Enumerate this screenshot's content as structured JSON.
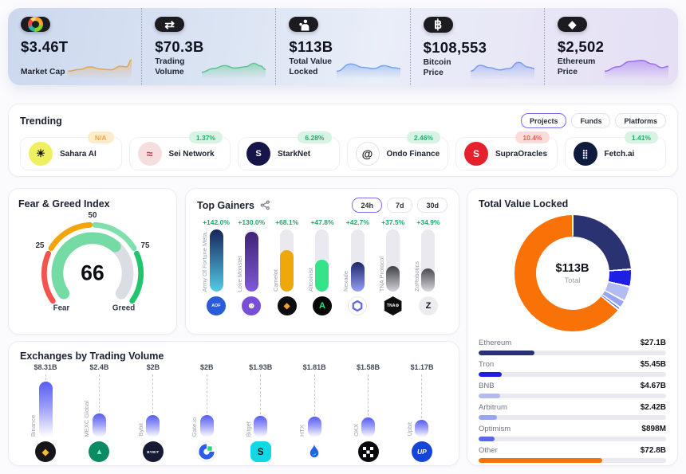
{
  "hero": {
    "cards": [
      {
        "label": "Market Cap",
        "value": "$3.46T",
        "icon": "market-cap-icon",
        "spark_color": "#e3a455",
        "spark": [
          [
            0,
            0.3
          ],
          [
            0.18,
            0.4
          ],
          [
            0.35,
            0.55
          ],
          [
            0.52,
            0.42
          ],
          [
            0.68,
            0.38
          ],
          [
            0.82,
            0.58
          ],
          [
            0.92,
            0.55
          ],
          [
            1,
            0.95
          ]
        ]
      },
      {
        "label": "Trading Volume",
        "value": "$70.3B",
        "icon": "swap-icon",
        "spark_color": "#58c68c",
        "spark": [
          [
            0,
            0.25
          ],
          [
            0.18,
            0.45
          ],
          [
            0.36,
            0.62
          ],
          [
            0.52,
            0.48
          ],
          [
            0.68,
            0.55
          ],
          [
            0.82,
            0.75
          ],
          [
            0.92,
            0.6
          ],
          [
            1,
            0.4
          ]
        ]
      },
      {
        "label": "Total Value Locked",
        "value": "$113B",
        "icon": "tvl-icon",
        "spark_color": "#78a4ef",
        "spark": [
          [
            0,
            0.3
          ],
          [
            0.22,
            0.72
          ],
          [
            0.42,
            0.52
          ],
          [
            0.58,
            0.45
          ],
          [
            0.74,
            0.62
          ],
          [
            0.9,
            0.5
          ],
          [
            1,
            0.45
          ]
        ]
      },
      {
        "label": "Bitcoin Price",
        "value": "$108,553",
        "icon": "bitcoin-icon",
        "spark_color": "#7b9af0",
        "spark": [
          [
            0,
            0.35
          ],
          [
            0.15,
            0.68
          ],
          [
            0.3,
            0.55
          ],
          [
            0.45,
            0.42
          ],
          [
            0.6,
            0.5
          ],
          [
            0.75,
            0.85
          ],
          [
            0.9,
            0.58
          ],
          [
            1,
            0.5
          ]
        ]
      },
      {
        "label": "Ethereum Price",
        "value": "$2,502",
        "icon": "ethereum-icon",
        "spark_color": "#9a6cf0",
        "spark": [
          [
            0,
            0.3
          ],
          [
            0.2,
            0.55
          ],
          [
            0.4,
            0.85
          ],
          [
            0.58,
            0.92
          ],
          [
            0.75,
            0.72
          ],
          [
            0.9,
            0.5
          ],
          [
            1,
            0.58
          ]
        ]
      }
    ]
  },
  "trending": {
    "title": "Trending",
    "filters": [
      {
        "label": "Projects",
        "active": true
      },
      {
        "label": "Funds",
        "active": false
      },
      {
        "label": "Platforms",
        "active": false
      }
    ],
    "items": [
      {
        "name": "Sahara AI",
        "change": "N/A",
        "change_type": "na",
        "icon": "sahara-ai-icon",
        "icon_bg": "#eef060",
        "icon_glyph": "☀",
        "icon_color": "#161616",
        "glyph_size": 13
      },
      {
        "name": "Sei Network",
        "change": "1.37%",
        "change_type": "up",
        "icon": "sei-network-icon",
        "icon_bg": "#f6dede",
        "icon_glyph": "≈",
        "icon_color": "#c23b4e",
        "glyph_size": 14
      },
      {
        "name": "StarkNet",
        "change": "6.28%",
        "change_type": "up",
        "icon": "starknet-icon",
        "icon_bg": "#16164a",
        "icon_glyph": "S",
        "icon_color": "#fff",
        "glyph_size": 11
      },
      {
        "name": "Ondo Finance",
        "change": "2.46%",
        "change_type": "up",
        "icon": "ondo-finance-icon",
        "icon_bg": "#ffffff",
        "icon_border": "#e2e2e8",
        "icon_glyph": "@",
        "icon_color": "#141414",
        "glyph_size": 14
      },
      {
        "name": "SupraOracles",
        "change": "10.4%",
        "change_type": "down",
        "icon": "supraoracles-icon",
        "icon_bg": "#e6212e",
        "icon_glyph": "S",
        "icon_color": "#fff",
        "glyph_size": 12
      },
      {
        "name": "Fetch.ai",
        "change": "1.41%",
        "change_type": "up",
        "icon": "fetch-ai-icon",
        "icon_bg": "#0e1b3d",
        "icon_glyph": "⣿",
        "icon_color": "#e8ecf5",
        "glyph_size": 11
      }
    ]
  },
  "fear_greed": {
    "title": "Fear & Greed Index",
    "value": 66,
    "ticks": [
      "25",
      "50",
      "75"
    ],
    "left_label": "Fear",
    "right_label": "Greed",
    "segment_colors": [
      "#f4544e",
      "#f2a50a",
      "#7fdfad",
      "#22c46d"
    ],
    "fill_color": "#74dba4",
    "track_color": "#dadde3"
  },
  "top_gainers": {
    "title": "Top Gainers",
    "ranges": [
      {
        "label": "24h",
        "active": true
      },
      {
        "label": "7d",
        "active": false
      },
      {
        "label": "30d",
        "active": false
      }
    ],
    "items": [
      {
        "name": "Army Of Fortune Meta...",
        "change": "+142.0%",
        "value": 142.0,
        "fill_top": "#17265c",
        "fill_bottom": "#53cbe6",
        "icon": "aof-icon",
        "icon_bg": "#2b5cd8",
        "icon_text": "AOF",
        "icon_color": "#fff"
      },
      {
        "name": "Love Monster",
        "change": "+130.0%",
        "value": 130.0,
        "fill_top": "#3f2575",
        "fill_bottom": "#8059d8",
        "icon": "love-monster-icon",
        "icon_bg": "#7a4fd8",
        "icon_glyph": "☻",
        "icon_color": "#fff",
        "glyph_size": 11
      },
      {
        "name": "Camelot",
        "change": "+68.1%",
        "value": 68.1,
        "fill_top": "#efa80b",
        "fill_bottom": "#efa80b",
        "icon": "camelot-icon",
        "icon_bg": "#0d0d0f",
        "icon_glyph": "◆",
        "icon_color": "#f0a12c",
        "glyph_size": 10
      },
      {
        "name": "Altcoinist",
        "change": "+47.8%",
        "value": 47.8,
        "fill_top": "#35e388",
        "fill_bottom": "#35e388",
        "icon": "altcoinist-icon",
        "icon_bg": "#070707",
        "icon_glyph": "A",
        "icon_color": "#2ee583",
        "glyph_size": 11
      },
      {
        "name": "Nexade",
        "change": "+42.7%",
        "value": 42.7,
        "fill_top": "#1d2668",
        "fill_bottom": "#97a0f5",
        "icon": "nexade-icon",
        "icon_bg": "#ffffff",
        "icon_border": "#e4e6f2",
        "icon_hex": "#5a67e8"
      },
      {
        "name": "TNA Protocol",
        "change": "+37.5%",
        "value": 37.5,
        "fill_top": "#3f3f46",
        "fill_bottom": "#d4d4da",
        "icon": "tna-protocol-icon",
        "icon_bg": "#0c0c0e",
        "icon_text": "TNA⚙",
        "icon_color": "#fff",
        "icon_shape": "hex"
      },
      {
        "name": "ZoRobotics",
        "change": "+34.9%",
        "value": 34.9,
        "fill_top": "#4a4a50",
        "fill_bottom": "#d8d8de",
        "icon": "zorobotics-icon",
        "icon_bg": "#ededf1",
        "icon_glyph": "Z",
        "icon_color": "#15151a",
        "glyph_size": 11
      }
    ]
  },
  "tvl": {
    "title": "Total Value Locked",
    "center_value": "$113B",
    "center_label": "Total",
    "items": [
      {
        "name": "Ethereum",
        "value": "$27.1B",
        "v": 27.1,
        "color": "#2b3272"
      },
      {
        "name": "Tron",
        "value": "$5.45B",
        "v": 5.45,
        "color": "#1e1ee4"
      },
      {
        "name": "BNB",
        "value": "$4.67B",
        "v": 4.67,
        "color": "#b2bcf2"
      },
      {
        "name": "Arbitrum",
        "value": "$2.42B",
        "v": 2.42,
        "color": "#98a5f0"
      },
      {
        "name": "Optimism",
        "value": "$898M",
        "v": 0.898,
        "color": "#5868e8"
      },
      {
        "name": "Other",
        "value": "$72.8B",
        "v": 72.8,
        "color": "#f87208"
      }
    ]
  },
  "exchanges": {
    "title": "Exchanges by Trading Volume",
    "items": [
      {
        "name": "Binance",
        "value": "$8.31B",
        "v": 8.31,
        "icon": "binance-icon"
      },
      {
        "name": "MEXC Global",
        "value": "$2.4B",
        "v": 2.4,
        "icon": "mexc-icon"
      },
      {
        "name": "Bybit",
        "value": "$2B",
        "v": 2.0,
        "icon": "bybit-icon"
      },
      {
        "name": "Gate.io",
        "value": "$2B",
        "v": 2.0,
        "icon": "gateio-icon"
      },
      {
        "name": "Bitget",
        "value": "$1.93B",
        "v": 1.93,
        "icon": "bitget-icon"
      },
      {
        "name": "HTX",
        "value": "$1.81B",
        "v": 1.81,
        "icon": "htx-icon"
      },
      {
        "name": "OKX",
        "value": "$1.58B",
        "v": 1.58,
        "icon": "okx-icon"
      },
      {
        "name": "Upbit",
        "value": "$1.17B",
        "v": 1.17,
        "icon": "upbit-icon"
      }
    ]
  }
}
